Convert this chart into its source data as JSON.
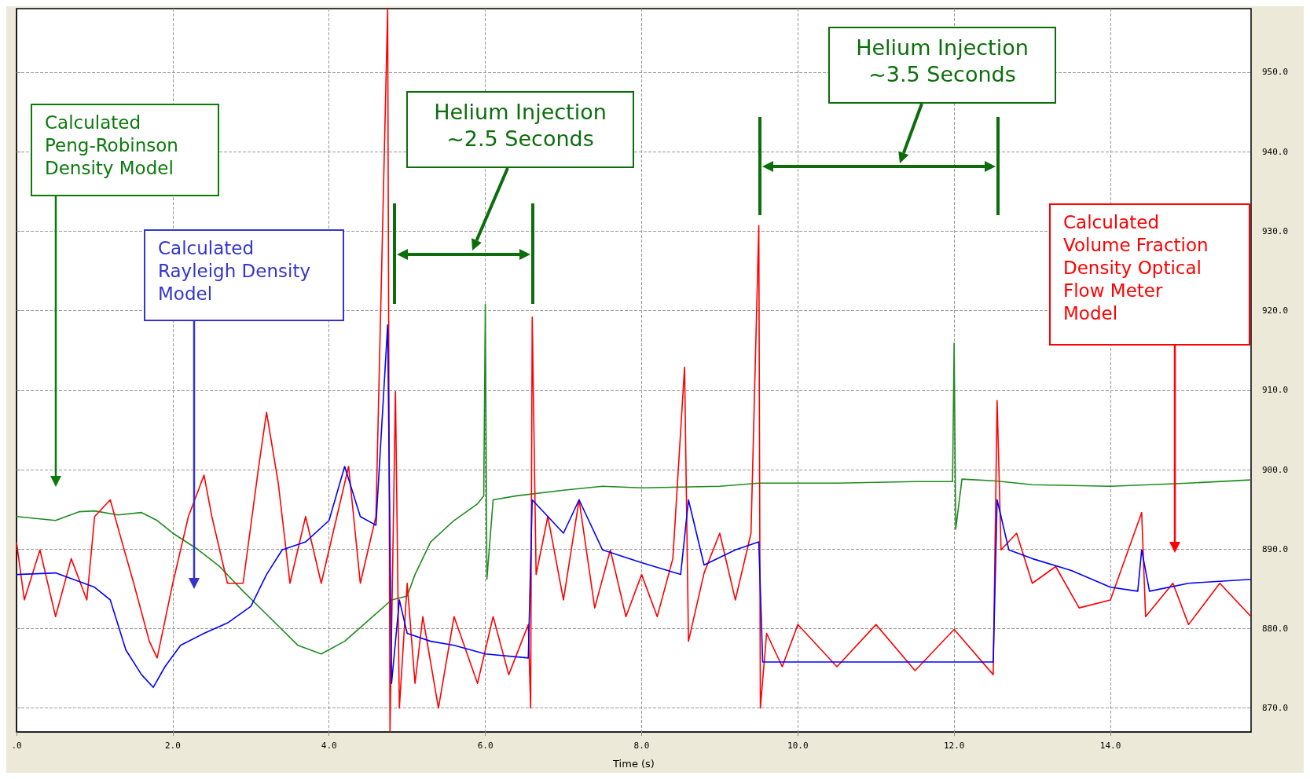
{
  "chart_data": {
    "type": "line",
    "xlabel": "Time (s)",
    "xlim": [
      0,
      15.8
    ],
    "ylim": [
      867,
      958
    ],
    "xticks": [
      {
        "value": 0,
        "label": ".0"
      },
      {
        "value": 2,
        "label": "2.0"
      },
      {
        "value": 4,
        "label": "4.0"
      },
      {
        "value": 6,
        "label": "6.0"
      },
      {
        "value": 8,
        "label": "8.0"
      },
      {
        "value": 10,
        "label": "10.0"
      },
      {
        "value": 12,
        "label": "12.0"
      },
      {
        "value": 14,
        "label": "14.0"
      }
    ],
    "yticks": [
      {
        "value": 870,
        "label": "870.0"
      },
      {
        "value": 880,
        "label": "880.0"
      },
      {
        "value": 890,
        "label": "890.0"
      },
      {
        "value": 900,
        "label": "900.0"
      },
      {
        "value": 910,
        "label": "910.0"
      },
      {
        "value": 920,
        "label": "920.0"
      },
      {
        "value": 930,
        "label": "930.0"
      },
      {
        "value": 940,
        "label": "940.0"
      },
      {
        "value": 950,
        "label": "950.0"
      }
    ],
    "grid": true,
    "marker": "none",
    "line_style": "solid",
    "series": [
      {
        "color": "#1f8a1f",
        "x": [
          0,
          0.5,
          0.8,
          1.0,
          1.3,
          1.6,
          1.8,
          2.0,
          2.3,
          2.6,
          2.9,
          3.2,
          3.6,
          3.9,
          4.2,
          4.5,
          4.8,
          5.0,
          5.1,
          5.3,
          5.6,
          5.9,
          5.98,
          6.0,
          6.02,
          6.1,
          6.4,
          7.0,
          7.5,
          8.0,
          9.0,
          9.5,
          10.5,
          11.5,
          11.98,
          12.0,
          12.02,
          12.1,
          12.5,
          13.0,
          14.0,
          15.0,
          15.8
        ],
        "values": [
          894.1,
          893.6,
          894.7,
          894.8,
          894.3,
          894.6,
          893.6,
          892.0,
          890.1,
          887.8,
          884.7,
          881.8,
          877.9,
          876.8,
          878.4,
          881.0,
          883.6,
          884.1,
          886.8,
          890.9,
          893.6,
          895.7,
          896.7,
          920.8,
          886.2,
          896.2,
          896.7,
          897.4,
          897.9,
          897.7,
          897.9,
          898.3,
          898.3,
          898.5,
          898.5,
          915.9,
          892.5,
          898.8,
          898.6,
          898.1,
          897.9,
          898.3,
          898.7
        ]
      },
      {
        "color": "#ff0000",
        "x": [
          0,
          0.1,
          0.3,
          0.5,
          0.7,
          0.9,
          1.0,
          1.2,
          1.35,
          1.5,
          1.7,
          1.8,
          2.0,
          2.2,
          2.4,
          2.5,
          2.7,
          2.9,
          3.1,
          3.2,
          3.35,
          3.5,
          3.7,
          3.9,
          4.1,
          4.25,
          4.4,
          4.6,
          4.75,
          4.78,
          4.85,
          4.9,
          5.0,
          5.1,
          5.2,
          5.4,
          5.6,
          5.9,
          6.1,
          6.3,
          6.55,
          6.58,
          6.6,
          6.65,
          6.8,
          7.0,
          7.2,
          7.4,
          7.6,
          7.8,
          8.0,
          8.2,
          8.4,
          8.55,
          8.6,
          8.8,
          9.0,
          9.2,
          9.4,
          9.5,
          9.52,
          9.6,
          9.8,
          10.0,
          10.5,
          11.0,
          11.5,
          12.0,
          12.5,
          12.55,
          12.6,
          12.8,
          13.0,
          13.3,
          13.6,
          14.0,
          14.4,
          14.45,
          14.8,
          15.0,
          15.4,
          15.8
        ],
        "values": [
          890.9,
          883.6,
          889.9,
          881.5,
          888.8,
          883.6,
          894.1,
          896.2,
          890.9,
          885.7,
          878.4,
          876.3,
          885.7,
          894.1,
          899.3,
          894.1,
          885.7,
          885.7,
          900.4,
          907.2,
          898.3,
          885.7,
          894.1,
          885.7,
          894.1,
          900.4,
          885.7,
          894.1,
          958.0,
          867.1,
          909.8,
          870.0,
          885.7,
          873.1,
          881.5,
          870.0,
          881.5,
          873.1,
          881.5,
          874.2,
          880.5,
          870.0,
          919.2,
          886.8,
          894.1,
          883.6,
          896.2,
          882.6,
          889.9,
          881.5,
          886.8,
          881.5,
          888.8,
          912.9,
          878.4,
          887.0,
          892.0,
          883.6,
          892.0,
          930.7,
          870.0,
          879.4,
          875.2,
          880.5,
          875.2,
          880.5,
          874.7,
          879.9,
          874.2,
          908.7,
          889.9,
          892.0,
          885.7,
          887.8,
          882.6,
          883.6,
          894.6,
          881.5,
          885.7,
          880.5,
          885.7,
          881.5
        ]
      },
      {
        "color": "#0000ff",
        "x": [
          0,
          0.5,
          1.0,
          1.2,
          1.4,
          1.6,
          1.75,
          1.9,
          2.1,
          2.4,
          2.7,
          3.0,
          3.2,
          3.4,
          3.7,
          4.0,
          4.2,
          4.4,
          4.6,
          4.75,
          4.8,
          4.9,
          5.0,
          5.3,
          5.6,
          6.0,
          6.55,
          6.6,
          7.0,
          7.2,
          7.5,
          8.0,
          8.5,
          8.6,
          8.8,
          9.2,
          9.5,
          9.55,
          10.0,
          11.0,
          12.0,
          12.5,
          12.55,
          12.7,
          13.0,
          13.5,
          14.0,
          14.35,
          14.4,
          14.5,
          15.0,
          15.8
        ],
        "values": [
          886.8,
          887.0,
          885.2,
          883.6,
          877.3,
          874.2,
          872.6,
          875.2,
          877.9,
          879.4,
          880.7,
          882.8,
          886.8,
          889.9,
          890.9,
          893.6,
          900.4,
          894.1,
          893.0,
          918.2,
          873.1,
          883.6,
          879.4,
          878.4,
          877.9,
          876.8,
          876.3,
          896.2,
          892.0,
          896.2,
          889.9,
          888.3,
          886.8,
          896.2,
          888.0,
          889.9,
          890.9,
          875.8,
          875.8,
          875.8,
          875.8,
          875.8,
          896.2,
          889.9,
          888.8,
          887.3,
          885.2,
          884.7,
          889.9,
          884.7,
          885.7,
          886.2
        ]
      }
    ],
    "annotations": [
      "Calculated\nPeng-Robinson\nDensity Model",
      "Calculated\nRayleigh Density\nModel",
      "Calculated\nVolume Fraction\nDensity Optical\nFlow Meter\nModel",
      "Helium Injection\n~2.5 Seconds",
      "Helium Injection\n~3.5 Seconds"
    ]
  }
}
